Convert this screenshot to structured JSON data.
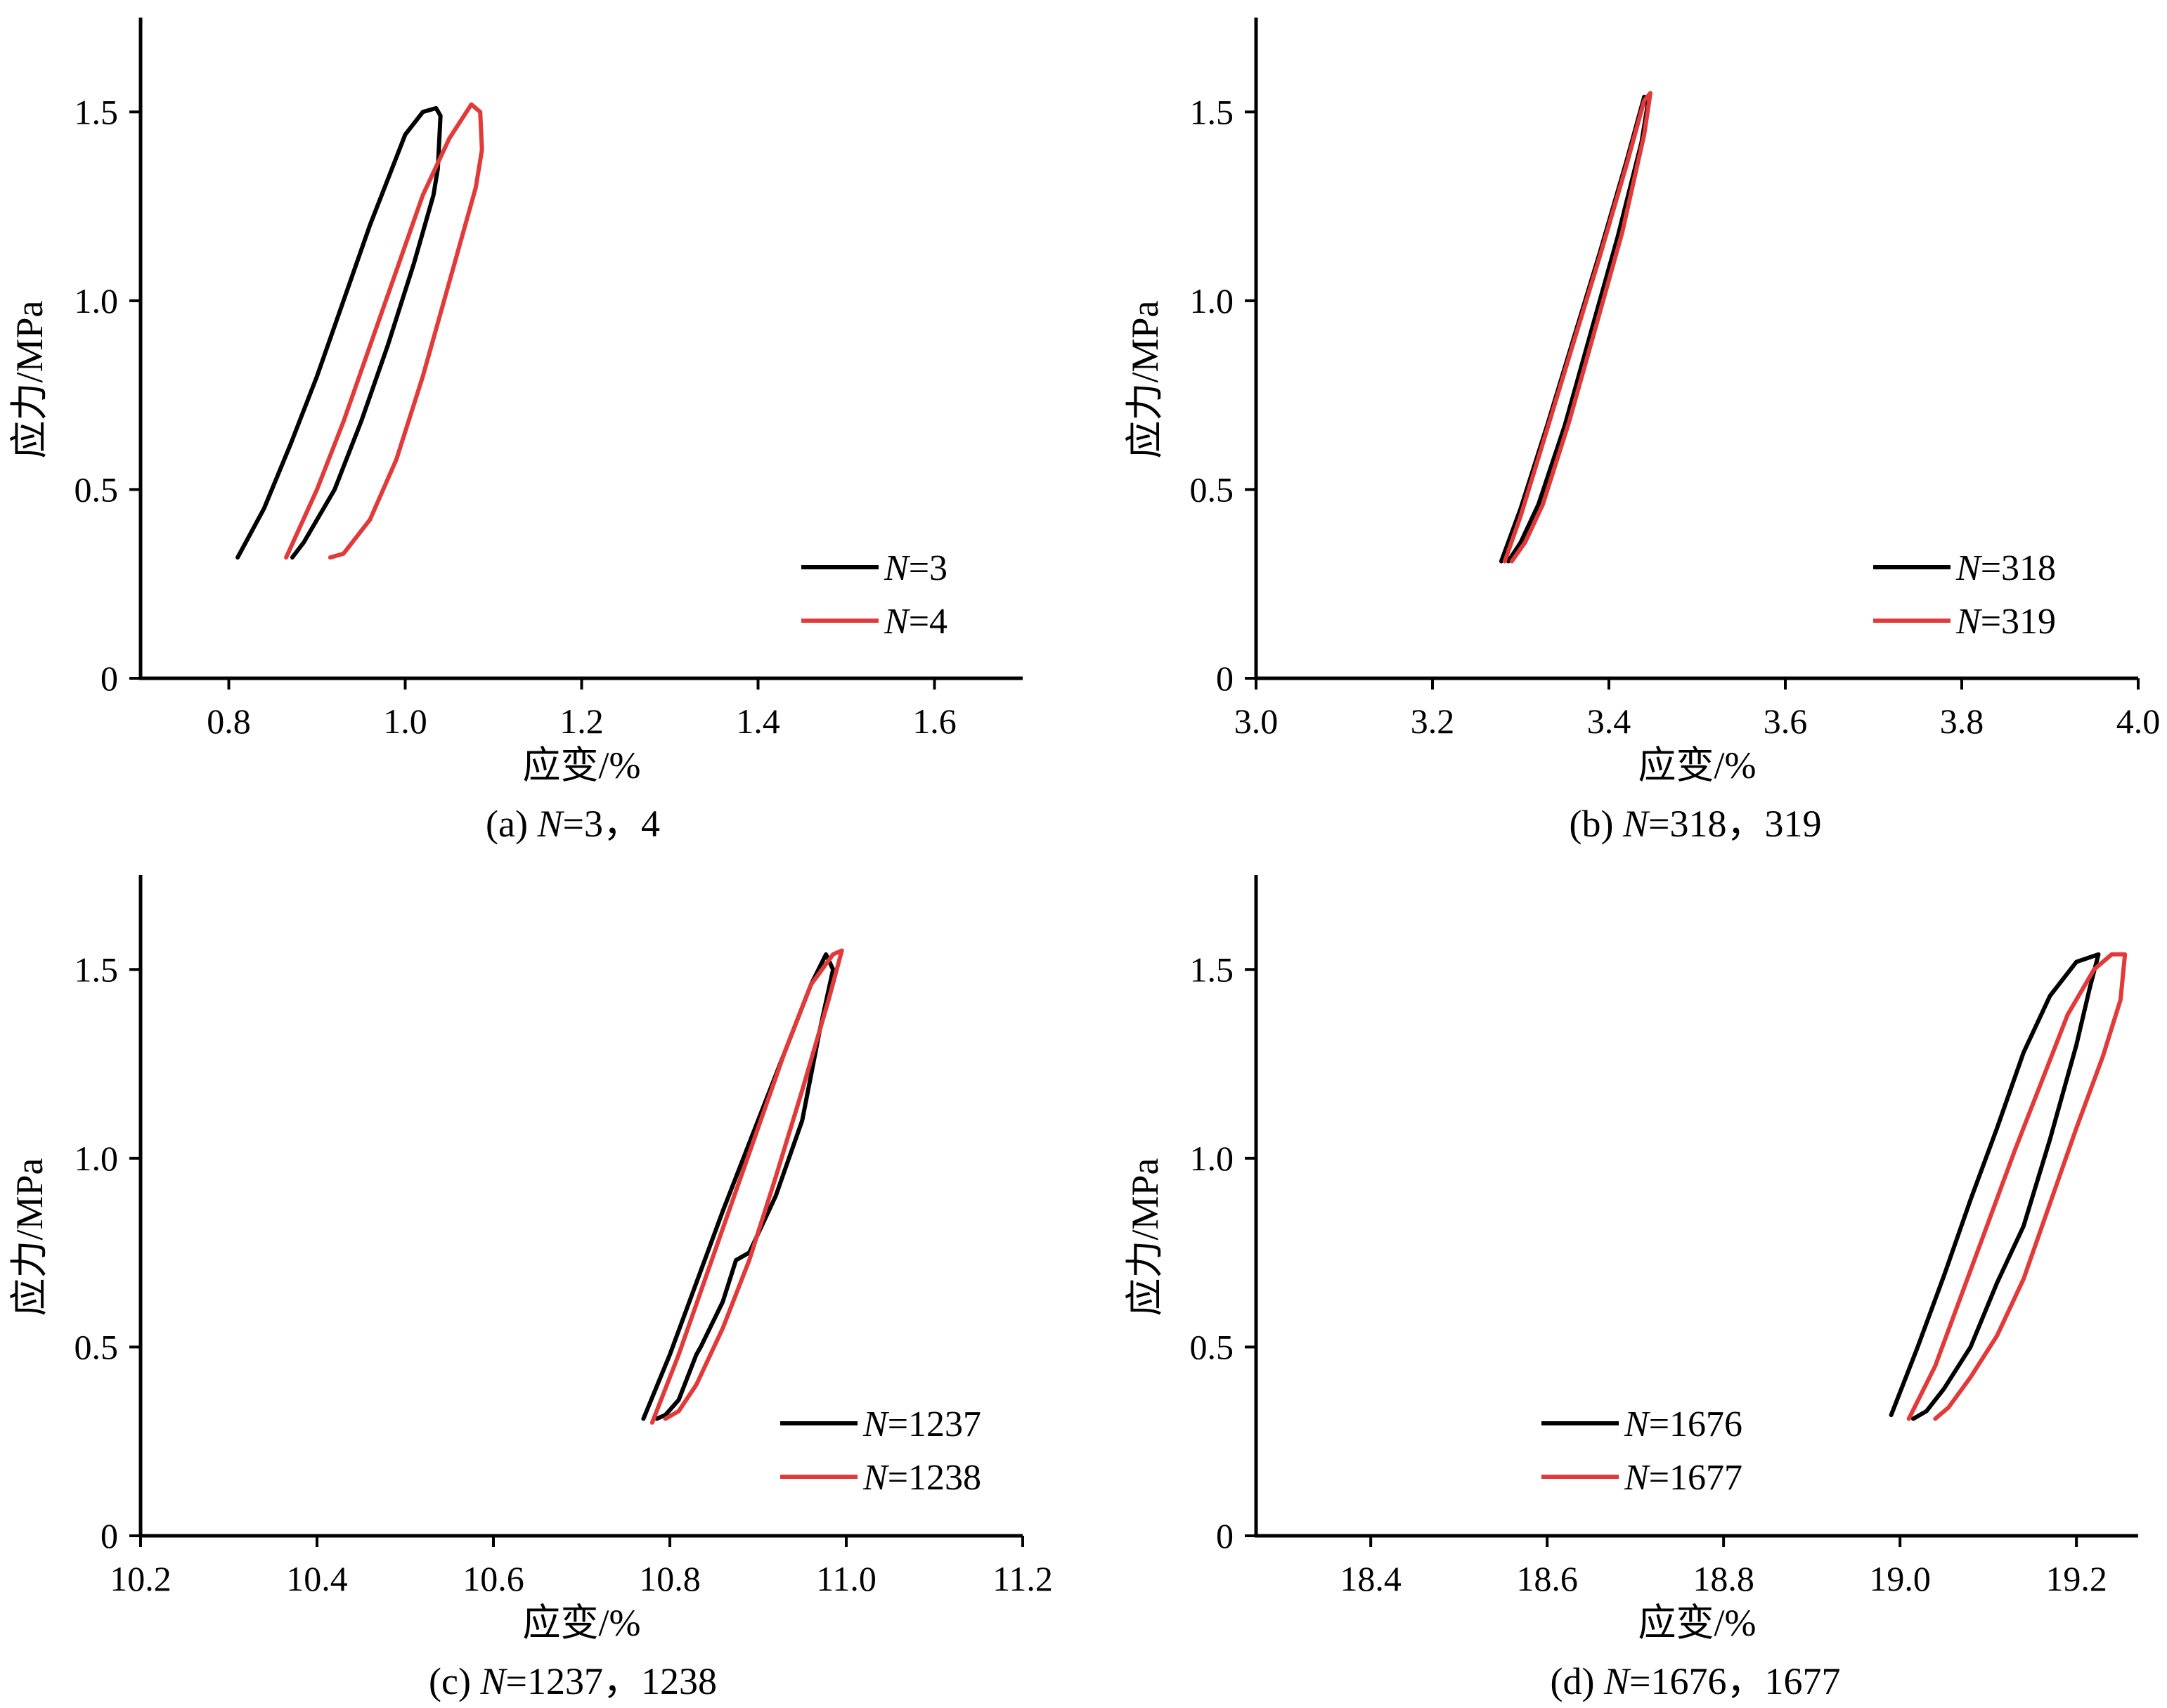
{
  "colors": {
    "black_series": "#000000",
    "red_series": "#e03a3a",
    "axis": "#000000"
  },
  "chart_data": [
    {
      "id": "a",
      "type": "line",
      "caption_prefix": "(a) ",
      "caption_n": "N",
      "caption_rest": "=3，4",
      "xlabel": "应变/%",
      "ylabel": "应力/MPa",
      "xlim": [
        0.7,
        1.7
      ],
      "ylim": [
        0,
        1.75
      ],
      "xticks": [
        0.8,
        1.0,
        1.2,
        1.4,
        1.6
      ],
      "xtick_labels": [
        "0.8",
        "1.0",
        "1.2",
        "1.4",
        "1.6"
      ],
      "yticks": [
        0,
        0.5,
        1.0,
        1.5
      ],
      "ytick_labels": [
        "0",
        "0.5",
        "1.0",
        "1.5"
      ],
      "legend_position": "bottom-right",
      "series": [
        {
          "name_n": "N",
          "name_rest": "=3",
          "color": "#000000",
          "x": [
            0.81,
            0.84,
            0.87,
            0.9,
            0.93,
            0.96,
            0.99,
            1.0,
            1.02,
            1.035,
            1.04,
            1.037,
            1.032,
            1.01,
            0.98,
            0.95,
            0.92,
            0.9,
            0.885,
            0.872
          ],
          "y": [
            0.32,
            0.45,
            0.62,
            0.8,
            1.0,
            1.2,
            1.38,
            1.44,
            1.5,
            1.51,
            1.49,
            1.35,
            1.28,
            1.1,
            0.88,
            0.68,
            0.5,
            0.42,
            0.36,
            0.32
          ]
        },
        {
          "name_n": "N",
          "name_rest": "=4",
          "color": "#e03a3a",
          "x": [
            0.865,
            0.9,
            0.93,
            0.96,
            0.99,
            1.02,
            1.05,
            1.075,
            1.085,
            1.087,
            1.08,
            1.05,
            1.02,
            0.99,
            0.96,
            0.93,
            0.915
          ],
          "y": [
            0.32,
            0.5,
            0.68,
            0.88,
            1.08,
            1.28,
            1.43,
            1.52,
            1.5,
            1.4,
            1.3,
            1.05,
            0.8,
            0.58,
            0.42,
            0.33,
            0.32
          ]
        }
      ]
    },
    {
      "id": "b",
      "type": "line",
      "caption_prefix": "(b) ",
      "caption_n": "N",
      "caption_rest": "=318，319",
      "xlabel": "应变/%",
      "ylabel": "应力/MPa",
      "xlim": [
        3.0,
        4.0
      ],
      "ylim": [
        0,
        1.75
      ],
      "xticks": [
        3.0,
        3.2,
        3.4,
        3.6,
        3.8,
        4.0
      ],
      "xtick_labels": [
        "3.0",
        "3.2",
        "3.4",
        "3.6",
        "3.8",
        "4.0"
      ],
      "yticks": [
        0,
        0.5,
        1.0,
        1.5
      ],
      "ytick_labels": [
        "0",
        "0.5",
        "1.0",
        "1.5"
      ],
      "legend_position": "bottom-right",
      "series": [
        {
          "name_n": "N",
          "name_rest": "=318",
          "color": "#000000",
          "x": [
            3.278,
            3.3,
            3.33,
            3.36,
            3.39,
            3.42,
            3.44,
            3.444,
            3.437,
            3.41,
            3.38,
            3.35,
            3.32,
            3.3,
            3.286
          ],
          "y": [
            0.31,
            0.45,
            0.67,
            0.9,
            1.13,
            1.37,
            1.54,
            1.52,
            1.42,
            1.17,
            0.92,
            0.67,
            0.46,
            0.36,
            0.31
          ]
        },
        {
          "name_n": "N",
          "name_rest": "=319",
          "color": "#e03a3a",
          "x": [
            3.282,
            3.3,
            3.33,
            3.36,
            3.39,
            3.42,
            3.44,
            3.447,
            3.44,
            3.415,
            3.385,
            3.355,
            3.325,
            3.305,
            3.29
          ],
          "y": [
            0.31,
            0.43,
            0.66,
            0.89,
            1.12,
            1.36,
            1.53,
            1.55,
            1.44,
            1.18,
            0.93,
            0.68,
            0.46,
            0.36,
            0.31
          ]
        }
      ]
    },
    {
      "id": "c",
      "type": "line",
      "caption_prefix": "(c)  ",
      "caption_n": "N",
      "caption_rest": "=1237，1238",
      "xlabel": "应变/%",
      "ylabel": "应力/MPa",
      "xlim": [
        10.2,
        11.2
      ],
      "ylim": [
        0,
        1.75
      ],
      "xticks": [
        10.2,
        10.4,
        10.6,
        10.8,
        11.0,
        11.2
      ],
      "xtick_labels": [
        "10.2",
        "10.4",
        "10.6",
        "10.8",
        "11.0",
        "11.2"
      ],
      "yticks": [
        0,
        0.5,
        1.0,
        1.5
      ],
      "ytick_labels": [
        "0",
        "0.5",
        "1.0",
        "1.5"
      ],
      "legend_position": "bottom-right",
      "series": [
        {
          "name_n": "N",
          "name_rest": "=1237",
          "color": "#000000",
          "x": [
            10.77,
            10.8,
            10.83,
            10.86,
            10.9,
            10.93,
            10.96,
            10.977,
            10.985,
            10.97,
            10.95,
            10.92,
            10.89,
            10.875,
            10.86,
            10.835,
            10.83,
            10.81,
            10.795,
            10.785
          ],
          "y": [
            0.31,
            0.48,
            0.67,
            0.86,
            1.1,
            1.28,
            1.46,
            1.54,
            1.5,
            1.34,
            1.1,
            0.9,
            0.75,
            0.73,
            0.62,
            0.5,
            0.48,
            0.36,
            0.32,
            0.31
          ]
        },
        {
          "name_n": "N",
          "name_rest": "=1238",
          "color": "#e03a3a",
          "x": [
            10.78,
            10.81,
            10.84,
            10.87,
            10.9,
            10.93,
            10.96,
            10.985,
            10.995,
            10.98,
            10.95,
            10.92,
            10.89,
            10.86,
            10.83,
            10.81,
            10.795
          ],
          "y": [
            0.3,
            0.48,
            0.68,
            0.88,
            1.08,
            1.28,
            1.46,
            1.54,
            1.55,
            1.42,
            1.18,
            0.95,
            0.73,
            0.55,
            0.4,
            0.33,
            0.31
          ]
        }
      ]
    },
    {
      "id": "d",
      "type": "line",
      "caption_prefix": "(d) ",
      "caption_n": "N",
      "caption_rest": "=1676，1677",
      "xlabel": "应变/%",
      "ylabel": "应力/MPa",
      "xlim": [
        18.27,
        19.27
      ],
      "ylim": [
        0,
        1.75
      ],
      "xticks": [
        18.4,
        18.6,
        18.8,
        19.0,
        19.2
      ],
      "xtick_labels": [
        "18.4",
        "18.6",
        "18.8",
        "19.0",
        "19.2"
      ],
      "yticks": [
        0,
        0.5,
        1.0,
        1.5
      ],
      "ytick_labels": [
        "0",
        "0.5",
        "1.0",
        "1.5"
      ],
      "legend_position": "bottom-center",
      "series": [
        {
          "name_n": "N",
          "name_rest": "=1676",
          "color": "#000000",
          "x": [
            18.99,
            19.02,
            19.05,
            19.08,
            19.11,
            19.14,
            19.17,
            19.2,
            19.225,
            19.215,
            19.2,
            19.17,
            19.14,
            19.11,
            19.08,
            19.05,
            19.03,
            19.015
          ],
          "y": [
            0.32,
            0.5,
            0.69,
            0.89,
            1.08,
            1.28,
            1.43,
            1.52,
            1.54,
            1.45,
            1.3,
            1.05,
            0.82,
            0.67,
            0.5,
            0.39,
            0.33,
            0.31
          ]
        },
        {
          "name_n": "N",
          "name_rest": "=1677",
          "color": "#e03a3a",
          "x": [
            19.01,
            19.04,
            19.07,
            19.1,
            19.13,
            19.16,
            19.19,
            19.22,
            19.24,
            19.255,
            19.25,
            19.23,
            19.2,
            19.17,
            19.14,
            19.11,
            19.08,
            19.055,
            19.04
          ],
          "y": [
            0.31,
            0.45,
            0.64,
            0.83,
            1.02,
            1.2,
            1.38,
            1.5,
            1.54,
            1.54,
            1.42,
            1.27,
            1.08,
            0.88,
            0.68,
            0.53,
            0.42,
            0.34,
            0.31
          ]
        }
      ]
    }
  ]
}
